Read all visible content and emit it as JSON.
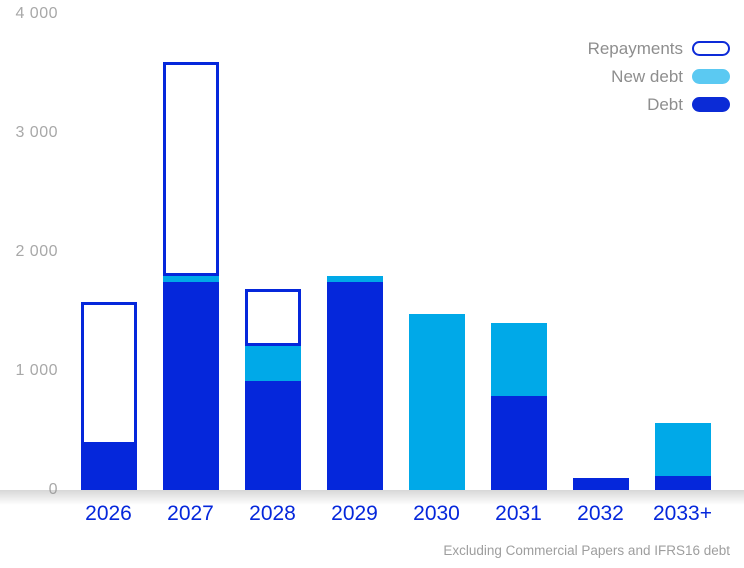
{
  "chart_data": {
    "type": "bar",
    "stacked": true,
    "title": "",
    "xlabel": "",
    "ylabel": "",
    "categories": [
      "2026",
      "2027",
      "2028",
      "2029",
      "2030",
      "2031",
      "2032",
      "2033+"
    ],
    "series": [
      {
        "name": "Debt",
        "style": "fill",
        "color": "#0527db",
        "values": [
          380,
          1750,
          920,
          1750,
          0,
          790,
          100,
          120
        ]
      },
      {
        "name": "New debt",
        "style": "fill",
        "color": "#00a9e8",
        "values": [
          0,
          50,
          290,
          50,
          1480,
          610,
          0,
          440
        ]
      },
      {
        "name": "Repayments",
        "style": "outline",
        "color": "#ffffff",
        "border_color": "#0527db",
        "values": [
          1200,
          1800,
          480,
          0,
          0,
          0,
          0,
          0
        ]
      }
    ],
    "ylim": [
      0,
      4000
    ],
    "yticks": [
      {
        "value": 0,
        "label": "0"
      },
      {
        "value": 1000,
        "label": "1 000"
      },
      {
        "value": 2000,
        "label": "2 000"
      },
      {
        "value": 3000,
        "label": "3 000"
      },
      {
        "value": 4000,
        "label": "4 000"
      }
    ],
    "grid": false,
    "legend_position": "top-right"
  },
  "legend": {
    "items": [
      {
        "label": "Repayments",
        "swatch_type": "outline",
        "fill": "#ffffff",
        "border": "#0d2bd8"
      },
      {
        "label": "New debt",
        "swatch_type": "fill",
        "fill": "#5bc9f2",
        "border": ""
      },
      {
        "label": "Debt",
        "swatch_type": "fill",
        "fill": "#0b2bd6",
        "border": ""
      }
    ]
  },
  "footer": {
    "note": "Excluding Commercial Papers and IFRS16 debt"
  },
  "colors": {
    "debt": "#0527db",
    "new_debt": "#00a9e8",
    "axis_label_gray": "#a8a8a8",
    "year_label_blue": "#0527db",
    "legend_text_gray": "#8e8e8e",
    "footnote_gray": "#9e9e9e"
  }
}
